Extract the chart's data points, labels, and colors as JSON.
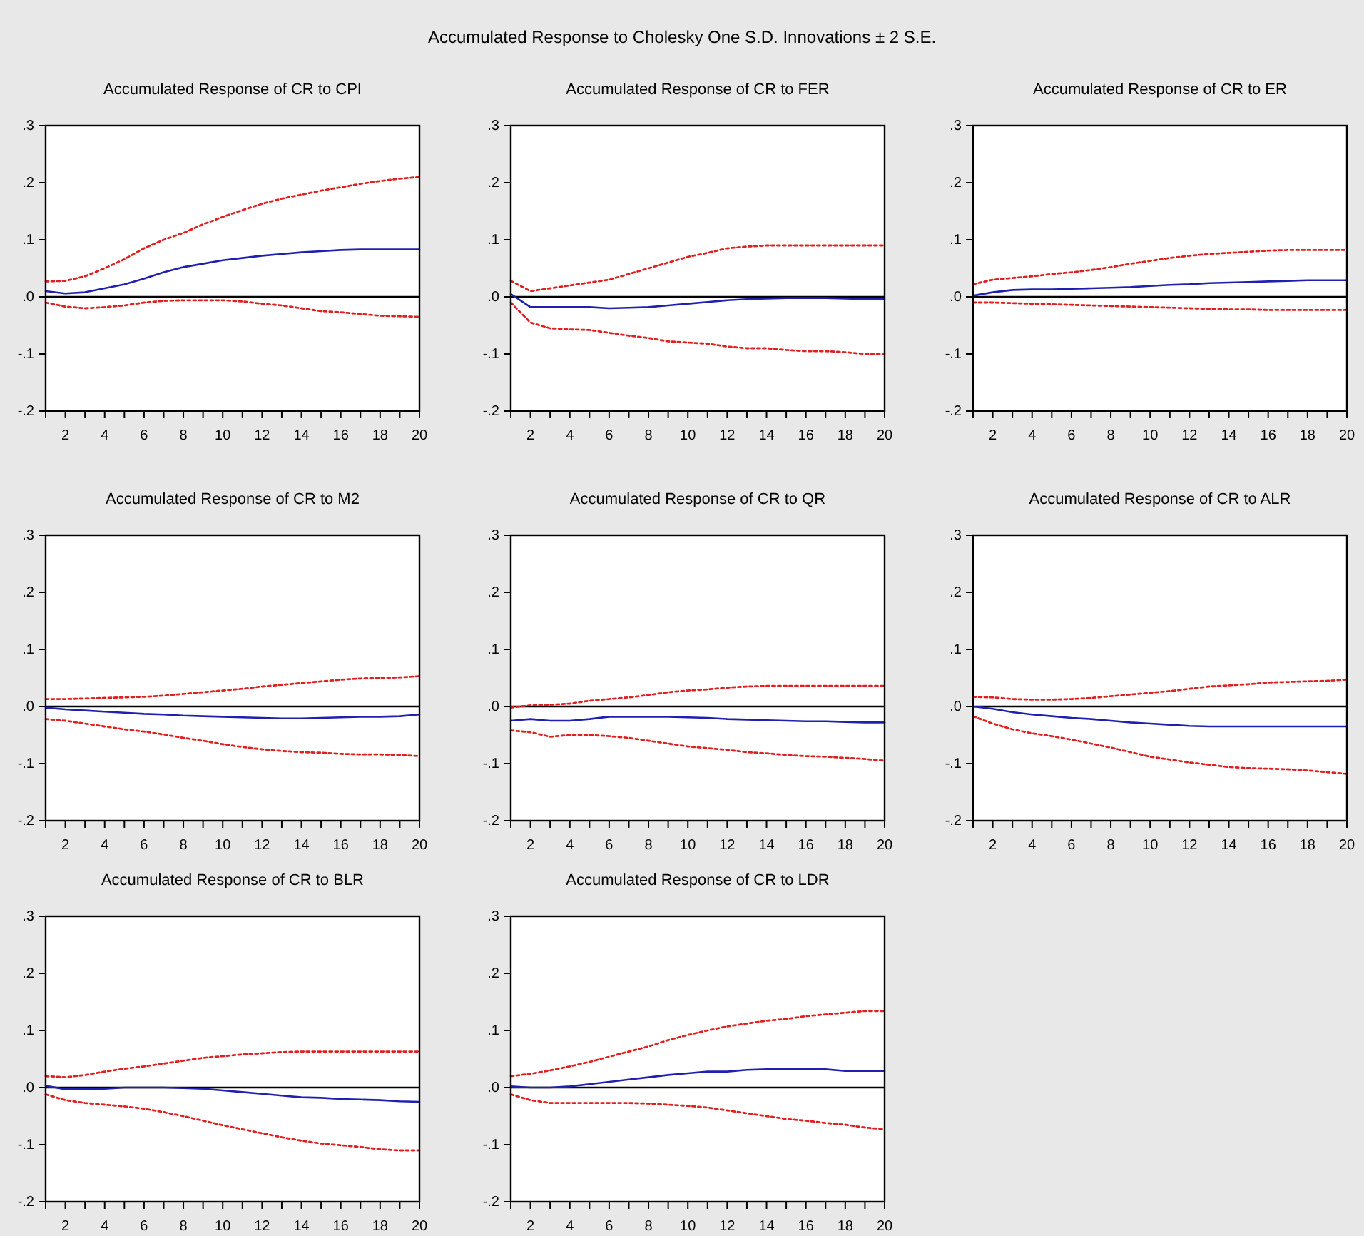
{
  "chart_data": [
    {
      "type": "line",
      "title": "Accumulated Response of CR to CPI",
      "annotations": [
        "Accumulated Response to Cholesky One S.D. Innovations ± 2 S.E."
      ],
      "x": [
        1,
        2,
        3,
        4,
        5,
        6,
        7,
        8,
        9,
        10,
        11,
        12,
        13,
        14,
        15,
        16,
        17,
        18,
        19,
        20
      ],
      "xlim": [
        1,
        20
      ],
      "xticks": [
        {
          "value": 1,
          "label": null
        },
        2,
        {
          "value": 3,
          "label": null
        },
        4,
        {
          "value": 5,
          "label": null
        },
        6,
        {
          "value": 7,
          "label": null
        },
        8,
        {
          "value": 9,
          "label": null
        },
        10,
        {
          "value": 11,
          "label": null
        },
        12,
        {
          "value": 13,
          "label": null
        },
        14,
        {
          "value": 15,
          "label": null
        },
        16,
        {
          "value": 17,
          "label": null
        },
        18,
        {
          "value": 19,
          "label": null
        },
        20
      ],
      "ylim": [
        -0.2,
        0.3
      ],
      "yticks": [
        {
          "value": -0.2,
          "label": "-.2"
        },
        {
          "value": -0.1,
          "label": "-.1"
        },
        {
          "value": 0,
          "label": ".0"
        },
        {
          "value": 0.1,
          "label": ".1"
        },
        {
          "value": 0.2,
          "label": ".2"
        },
        {
          "value": 0.3,
          "label": ".3"
        }
      ],
      "ref_lines": [
        {
          "axis": "y",
          "value": 0,
          "color": "#000000"
        }
      ],
      "series": [
        {
          "color": "#2020b0",
          "line_style": "solid",
          "values": [
            0.01,
            0.006,
            0.008,
            0.015,
            0.022,
            0.032,
            0.043,
            0.052,
            0.058,
            0.064,
            0.068,
            0.072,
            0.075,
            0.078,
            0.08,
            0.082,
            0.083,
            0.083,
            0.083,
            0.083
          ]
        },
        {
          "color": "#e02020",
          "line_style": "dotted",
          "values": [
            0.027,
            0.028,
            0.036,
            0.05,
            0.066,
            0.085,
            0.1,
            0.112,
            0.127,
            0.14,
            0.152,
            0.163,
            0.172,
            0.179,
            0.186,
            0.192,
            0.198,
            0.203,
            0.207,
            0.21
          ]
        },
        {
          "color": "#e02020",
          "line_style": "dotted",
          "values": [
            -0.01,
            -0.017,
            -0.02,
            -0.018,
            -0.015,
            -0.01,
            -0.007,
            -0.006,
            -0.006,
            -0.006,
            -0.008,
            -0.012,
            -0.015,
            -0.02,
            -0.025,
            -0.027,
            -0.03,
            -0.033,
            -0.034,
            -0.035
          ]
        }
      ]
    },
    {
      "type": "line",
      "title": "Accumulated Response of CR to FER",
      "x": [
        1,
        2,
        3,
        4,
        5,
        6,
        7,
        8,
        9,
        10,
        11,
        12,
        13,
        14,
        15,
        16,
        17,
        18,
        19,
        20
      ],
      "xlim": [
        1,
        20
      ],
      "xticks": [
        {
          "value": 1,
          "label": null
        },
        2,
        {
          "value": 3,
          "label": null
        },
        4,
        {
          "value": 5,
          "label": null
        },
        6,
        {
          "value": 7,
          "label": null
        },
        8,
        {
          "value": 9,
          "label": null
        },
        10,
        {
          "value": 11,
          "label": null
        },
        12,
        {
          "value": 13,
          "label": null
        },
        14,
        {
          "value": 15,
          "label": null
        },
        16,
        {
          "value": 17,
          "label": null
        },
        18,
        {
          "value": 19,
          "label": null
        },
        20
      ],
      "ylim": [
        -0.2,
        0.3
      ],
      "yticks": [
        {
          "value": -0.2,
          "label": "-.2"
        },
        {
          "value": -0.1,
          "label": "-.1"
        },
        {
          "value": 0,
          "label": ".0"
        },
        {
          "value": 0.1,
          "label": ".1"
        },
        {
          "value": 0.2,
          "label": ".2"
        },
        {
          "value": 0.3,
          "label": ".3"
        }
      ],
      "ref_lines": [
        {
          "axis": "y",
          "value": 0,
          "color": "#000000"
        }
      ],
      "series": [
        {
          "color": "#2020b0",
          "line_style": "solid",
          "values": [
            0.005,
            -0.018,
            -0.018,
            -0.018,
            -0.018,
            -0.02,
            -0.019,
            -0.018,
            -0.015,
            -0.012,
            -0.009,
            -0.006,
            -0.004,
            -0.003,
            -0.002,
            -0.002,
            -0.002,
            -0.003,
            -0.004,
            -0.004
          ]
        },
        {
          "color": "#e02020",
          "line_style": "dotted",
          "values": [
            0.028,
            0.01,
            0.015,
            0.02,
            0.025,
            0.03,
            0.04,
            0.05,
            0.06,
            0.07,
            0.077,
            0.085,
            0.088,
            0.09,
            0.09,
            0.09,
            0.09,
            0.09,
            0.09,
            0.09
          ]
        },
        {
          "color": "#e02020",
          "line_style": "dotted",
          "values": [
            -0.01,
            -0.045,
            -0.055,
            -0.057,
            -0.058,
            -0.063,
            -0.068,
            -0.072,
            -0.078,
            -0.08,
            -0.082,
            -0.087,
            -0.09,
            -0.09,
            -0.093,
            -0.095,
            -0.095,
            -0.097,
            -0.1,
            -0.1
          ]
        }
      ]
    },
    {
      "type": "line",
      "title": "Accumulated Response of CR to ER",
      "x": [
        1,
        2,
        3,
        4,
        5,
        6,
        7,
        8,
        9,
        10,
        11,
        12,
        13,
        14,
        15,
        16,
        17,
        18,
        19,
        20
      ],
      "xlim": [
        1,
        20
      ],
      "xticks": [
        {
          "value": 1,
          "label": null
        },
        2,
        {
          "value": 3,
          "label": null
        },
        4,
        {
          "value": 5,
          "label": null
        },
        6,
        {
          "value": 7,
          "label": null
        },
        8,
        {
          "value": 9,
          "label": null
        },
        10,
        {
          "value": 11,
          "label": null
        },
        12,
        {
          "value": 13,
          "label": null
        },
        14,
        {
          "value": 15,
          "label": null
        },
        16,
        {
          "value": 17,
          "label": null
        },
        18,
        {
          "value": 19,
          "label": null
        },
        20
      ],
      "ylim": [
        -0.2,
        0.3
      ],
      "yticks": [
        {
          "value": -0.2,
          "label": "-.2"
        },
        {
          "value": -0.1,
          "label": "-.1"
        },
        {
          "value": 0,
          "label": ".0"
        },
        {
          "value": 0.1,
          "label": ".1"
        },
        {
          "value": 0.2,
          "label": ".2"
        },
        {
          "value": 0.3,
          "label": ".3"
        }
      ],
      "ref_lines": [
        {
          "axis": "y",
          "value": 0,
          "color": "#000000"
        }
      ],
      "series": [
        {
          "color": "#2020b0",
          "line_style": "solid",
          "values": [
            0.002,
            0.008,
            0.012,
            0.013,
            0.013,
            0.014,
            0.015,
            0.016,
            0.017,
            0.019,
            0.021,
            0.022,
            0.024,
            0.025,
            0.026,
            0.027,
            0.028,
            0.029,
            0.029,
            0.029
          ]
        },
        {
          "color": "#e02020",
          "line_style": "dotted",
          "values": [
            0.022,
            0.03,
            0.033,
            0.036,
            0.04,
            0.043,
            0.047,
            0.052,
            0.058,
            0.063,
            0.068,
            0.072,
            0.075,
            0.077,
            0.079,
            0.081,
            0.082,
            0.082,
            0.082,
            0.082
          ]
        },
        {
          "color": "#e02020",
          "line_style": "dotted",
          "values": [
            -0.01,
            -0.01,
            -0.011,
            -0.012,
            -0.013,
            -0.014,
            -0.015,
            -0.016,
            -0.017,
            -0.018,
            -0.019,
            -0.02,
            -0.021,
            -0.022,
            -0.022,
            -0.023,
            -0.023,
            -0.023,
            -0.023,
            -0.023
          ]
        }
      ]
    },
    {
      "type": "line",
      "title": "Accumulated Response of CR to M2",
      "x": [
        1,
        2,
        3,
        4,
        5,
        6,
        7,
        8,
        9,
        10,
        11,
        12,
        13,
        14,
        15,
        16,
        17,
        18,
        19,
        20
      ],
      "xlim": [
        1,
        20
      ],
      "xticks": [
        {
          "value": 1,
          "label": null
        },
        2,
        {
          "value": 3,
          "label": null
        },
        4,
        {
          "value": 5,
          "label": null
        },
        6,
        {
          "value": 7,
          "label": null
        },
        8,
        {
          "value": 9,
          "label": null
        },
        10,
        {
          "value": 11,
          "label": null
        },
        12,
        {
          "value": 13,
          "label": null
        },
        14,
        {
          "value": 15,
          "label": null
        },
        16,
        {
          "value": 17,
          "label": null
        },
        18,
        {
          "value": 19,
          "label": null
        },
        20
      ],
      "ylim": [
        -0.2,
        0.3
      ],
      "yticks": [
        {
          "value": -0.2,
          "label": "-.2"
        },
        {
          "value": -0.1,
          "label": "-.1"
        },
        {
          "value": 0,
          "label": ".0"
        },
        {
          "value": 0.1,
          "label": ".1"
        },
        {
          "value": 0.2,
          "label": ".2"
        },
        {
          "value": 0.3,
          "label": ".3"
        }
      ],
      "ref_lines": [
        {
          "axis": "y",
          "value": 0,
          "color": "#000000"
        }
      ],
      "series": [
        {
          "color": "#2020b0",
          "line_style": "solid",
          "values": [
            -0.002,
            -0.005,
            -0.007,
            -0.009,
            -0.011,
            -0.013,
            -0.014,
            -0.016,
            -0.017,
            -0.018,
            -0.019,
            -0.02,
            -0.021,
            -0.021,
            -0.02,
            -0.019,
            -0.018,
            -0.018,
            -0.017,
            -0.014
          ]
        },
        {
          "color": "#e02020",
          "line_style": "dotted",
          "values": [
            0.013,
            0.013,
            0.014,
            0.015,
            0.016,
            0.017,
            0.019,
            0.022,
            0.025,
            0.028,
            0.031,
            0.035,
            0.038,
            0.041,
            0.044,
            0.047,
            0.049,
            0.05,
            0.051,
            0.053
          ]
        },
        {
          "color": "#e02020",
          "line_style": "dotted",
          "values": [
            -0.022,
            -0.025,
            -0.03,
            -0.035,
            -0.04,
            -0.044,
            -0.049,
            -0.055,
            -0.06,
            -0.066,
            -0.071,
            -0.075,
            -0.078,
            -0.08,
            -0.081,
            -0.083,
            -0.084,
            -0.084,
            -0.085,
            -0.087
          ]
        }
      ]
    },
    {
      "type": "line",
      "title": "Accumulated Response of CR to QR",
      "x": [
        1,
        2,
        3,
        4,
        5,
        6,
        7,
        8,
        9,
        10,
        11,
        12,
        13,
        14,
        15,
        16,
        17,
        18,
        19,
        20
      ],
      "xlim": [
        1,
        20
      ],
      "xticks": [
        {
          "value": 1,
          "label": null
        },
        2,
        {
          "value": 3,
          "label": null
        },
        4,
        {
          "value": 5,
          "label": null
        },
        6,
        {
          "value": 7,
          "label": null
        },
        8,
        {
          "value": 9,
          "label": null
        },
        10,
        {
          "value": 11,
          "label": null
        },
        12,
        {
          "value": 13,
          "label": null
        },
        14,
        {
          "value": 15,
          "label": null
        },
        16,
        {
          "value": 17,
          "label": null
        },
        18,
        {
          "value": 19,
          "label": null
        },
        20
      ],
      "ylim": [
        -0.2,
        0.3
      ],
      "yticks": [
        {
          "value": -0.2,
          "label": "-.2"
        },
        {
          "value": -0.1,
          "label": "-.1"
        },
        {
          "value": 0,
          "label": ".0"
        },
        {
          "value": 0.1,
          "label": ".1"
        },
        {
          "value": 0.2,
          "label": ".2"
        },
        {
          "value": 0.3,
          "label": ".3"
        }
      ],
      "ref_lines": [
        {
          "axis": "y",
          "value": 0,
          "color": "#000000"
        }
      ],
      "series": [
        {
          "color": "#2020b0",
          "line_style": "solid",
          "values": [
            -0.025,
            -0.022,
            -0.025,
            -0.025,
            -0.022,
            -0.018,
            -0.018,
            -0.018,
            -0.018,
            -0.019,
            -0.02,
            -0.022,
            -0.023,
            -0.024,
            -0.025,
            -0.026,
            -0.026,
            -0.027,
            -0.028,
            -0.028
          ]
        },
        {
          "color": "#e02020",
          "line_style": "dotted",
          "values": [
            -0.002,
            0.002,
            0.003,
            0.005,
            0.01,
            0.013,
            0.016,
            0.02,
            0.025,
            0.028,
            0.03,
            0.033,
            0.035,
            0.036,
            0.036,
            0.036,
            0.036,
            0.036,
            0.036,
            0.036
          ]
        },
        {
          "color": "#e02020",
          "line_style": "dotted",
          "values": [
            -0.042,
            -0.045,
            -0.053,
            -0.05,
            -0.05,
            -0.052,
            -0.055,
            -0.06,
            -0.065,
            -0.07,
            -0.073,
            -0.076,
            -0.08,
            -0.082,
            -0.085,
            -0.087,
            -0.088,
            -0.09,
            -0.092,
            -0.095
          ]
        }
      ]
    },
    {
      "type": "line",
      "title": "Accumulated Response of CR to ALR",
      "x": [
        1,
        2,
        3,
        4,
        5,
        6,
        7,
        8,
        9,
        10,
        11,
        12,
        13,
        14,
        15,
        16,
        17,
        18,
        19,
        20
      ],
      "xlim": [
        1,
        20
      ],
      "xticks": [
        {
          "value": 1,
          "label": null
        },
        2,
        {
          "value": 3,
          "label": null
        },
        4,
        {
          "value": 5,
          "label": null
        },
        6,
        {
          "value": 7,
          "label": null
        },
        8,
        {
          "value": 9,
          "label": null
        },
        10,
        {
          "value": 11,
          "label": null
        },
        12,
        {
          "value": 13,
          "label": null
        },
        14,
        {
          "value": 15,
          "label": null
        },
        16,
        {
          "value": 17,
          "label": null
        },
        18,
        {
          "value": 19,
          "label": null
        },
        20
      ],
      "ylim": [
        -0.2,
        0.3
      ],
      "yticks": [
        {
          "value": -0.2,
          "label": "-.2"
        },
        {
          "value": -0.1,
          "label": "-.1"
        },
        {
          "value": 0,
          "label": ".0"
        },
        {
          "value": 0.1,
          "label": ".1"
        },
        {
          "value": 0.2,
          "label": ".2"
        },
        {
          "value": 0.3,
          "label": ".3"
        }
      ],
      "ref_lines": [
        {
          "axis": "y",
          "value": 0,
          "color": "#000000"
        }
      ],
      "series": [
        {
          "color": "#2020b0",
          "line_style": "solid",
          "values": [
            0,
            -0.004,
            -0.01,
            -0.014,
            -0.017,
            -0.02,
            -0.022,
            -0.025,
            -0.028,
            -0.03,
            -0.032,
            -0.034,
            -0.035,
            -0.035,
            -0.035,
            -0.035,
            -0.035,
            -0.035,
            -0.035,
            -0.035
          ]
        },
        {
          "color": "#e02020",
          "line_style": "dotted",
          "values": [
            0.017,
            0.016,
            0.013,
            0.012,
            0.012,
            0.013,
            0.015,
            0.018,
            0.021,
            0.024,
            0.027,
            0.031,
            0.035,
            0.037,
            0.039,
            0.042,
            0.043,
            0.044,
            0.045,
            0.047
          ]
        },
        {
          "color": "#e02020",
          "line_style": "dotted",
          "values": [
            -0.017,
            -0.03,
            -0.04,
            -0.047,
            -0.052,
            -0.058,
            -0.065,
            -0.072,
            -0.08,
            -0.088,
            -0.093,
            -0.098,
            -0.102,
            -0.106,
            -0.108,
            -0.109,
            -0.11,
            -0.112,
            -0.115,
            -0.118
          ]
        }
      ]
    },
    {
      "type": "line",
      "title": "Accumulated Response of CR to BLR",
      "x": [
        1,
        2,
        3,
        4,
        5,
        6,
        7,
        8,
        9,
        10,
        11,
        12,
        13,
        14,
        15,
        16,
        17,
        18,
        19,
        20
      ],
      "xlim": [
        1,
        20
      ],
      "xticks": [
        {
          "value": 1,
          "label": null
        },
        2,
        {
          "value": 3,
          "label": null
        },
        4,
        {
          "value": 5,
          "label": null
        },
        6,
        {
          "value": 7,
          "label": null
        },
        8,
        {
          "value": 9,
          "label": null
        },
        10,
        {
          "value": 11,
          "label": null
        },
        12,
        {
          "value": 13,
          "label": null
        },
        14,
        {
          "value": 15,
          "label": null
        },
        16,
        {
          "value": 17,
          "label": null
        },
        18,
        {
          "value": 19,
          "label": null
        },
        20
      ],
      "ylim": [
        -0.2,
        0.3
      ],
      "yticks": [
        {
          "value": -0.2,
          "label": "-.2"
        },
        {
          "value": -0.1,
          "label": "-.1"
        },
        {
          "value": 0,
          "label": ".0"
        },
        {
          "value": 0.1,
          "label": ".1"
        },
        {
          "value": 0.2,
          "label": ".2"
        },
        {
          "value": 0.3,
          "label": ".3"
        }
      ],
      "ref_lines": [
        {
          "axis": "y",
          "value": 0,
          "color": "#000000"
        }
      ],
      "series": [
        {
          "color": "#2020b0",
          "line_style": "solid",
          "values": [
            0.003,
            -0.003,
            -0.003,
            -0.002,
            0,
            0,
            0,
            -0.001,
            -0.002,
            -0.005,
            -0.008,
            -0.011,
            -0.014,
            -0.017,
            -0.018,
            -0.02,
            -0.021,
            -0.022,
            -0.024,
            -0.025
          ]
        },
        {
          "color": "#e02020",
          "line_style": "dotted",
          "values": [
            0.02,
            0.018,
            0.022,
            0.028,
            0.033,
            0.037,
            0.042,
            0.047,
            0.052,
            0.055,
            0.058,
            0.06,
            0.062,
            0.063,
            0.063,
            0.063,
            0.063,
            0.063,
            0.063,
            0.063
          ]
        },
        {
          "color": "#e02020",
          "line_style": "dotted",
          "values": [
            -0.012,
            -0.022,
            -0.027,
            -0.03,
            -0.033,
            -0.037,
            -0.043,
            -0.05,
            -0.058,
            -0.066,
            -0.073,
            -0.08,
            -0.087,
            -0.093,
            -0.098,
            -0.101,
            -0.104,
            -0.108,
            -0.11,
            -0.11
          ]
        }
      ]
    },
    {
      "type": "line",
      "title": "Accumulated Response of CR to LDR",
      "x": [
        1,
        2,
        3,
        4,
        5,
        6,
        7,
        8,
        9,
        10,
        11,
        12,
        13,
        14,
        15,
        16,
        17,
        18,
        19,
        20
      ],
      "xlim": [
        1,
        20
      ],
      "xticks": [
        {
          "value": 1,
          "label": null
        },
        2,
        {
          "value": 3,
          "label": null
        },
        4,
        {
          "value": 5,
          "label": null
        },
        6,
        {
          "value": 7,
          "label": null
        },
        8,
        {
          "value": 9,
          "label": null
        },
        10,
        {
          "value": 11,
          "label": null
        },
        12,
        {
          "value": 13,
          "label": null
        },
        14,
        {
          "value": 15,
          "label": null
        },
        16,
        {
          "value": 17,
          "label": null
        },
        18,
        {
          "value": 19,
          "label": null
        },
        20
      ],
      "ylim": [
        -0.2,
        0.3
      ],
      "yticks": [
        {
          "value": -0.2,
          "label": "-.2"
        },
        {
          "value": -0.1,
          "label": "-.1"
        },
        {
          "value": 0,
          "label": ".0"
        },
        {
          "value": 0.1,
          "label": ".1"
        },
        {
          "value": 0.2,
          "label": ".2"
        },
        {
          "value": 0.3,
          "label": ".3"
        }
      ],
      "ref_lines": [
        {
          "axis": "y",
          "value": 0,
          "color": "#000000"
        }
      ],
      "series": [
        {
          "color": "#2020b0",
          "line_style": "solid",
          "values": [
            0.002,
            0,
            0,
            0.002,
            0.006,
            0.01,
            0.014,
            0.018,
            0.022,
            0.025,
            0.028,
            0.028,
            0.031,
            0.032,
            0.032,
            0.032,
            0.032,
            0.029,
            0.029,
            0.029
          ]
        },
        {
          "color": "#e02020",
          "line_style": "dotted",
          "values": [
            0.02,
            0.024,
            0.03,
            0.037,
            0.045,
            0.054,
            0.063,
            0.072,
            0.083,
            0.092,
            0.1,
            0.107,
            0.112,
            0.117,
            0.12,
            0.125,
            0.128,
            0.131,
            0.134,
            0.134
          ]
        },
        {
          "color": "#e02020",
          "line_style": "dotted",
          "values": [
            -0.012,
            -0.022,
            -0.027,
            -0.027,
            -0.027,
            -0.027,
            -0.027,
            -0.028,
            -0.03,
            -0.032,
            -0.035,
            -0.04,
            -0.045,
            -0.05,
            -0.055,
            -0.058,
            -0.062,
            -0.065,
            -0.07,
            -0.073
          ]
        }
      ]
    }
  ]
}
